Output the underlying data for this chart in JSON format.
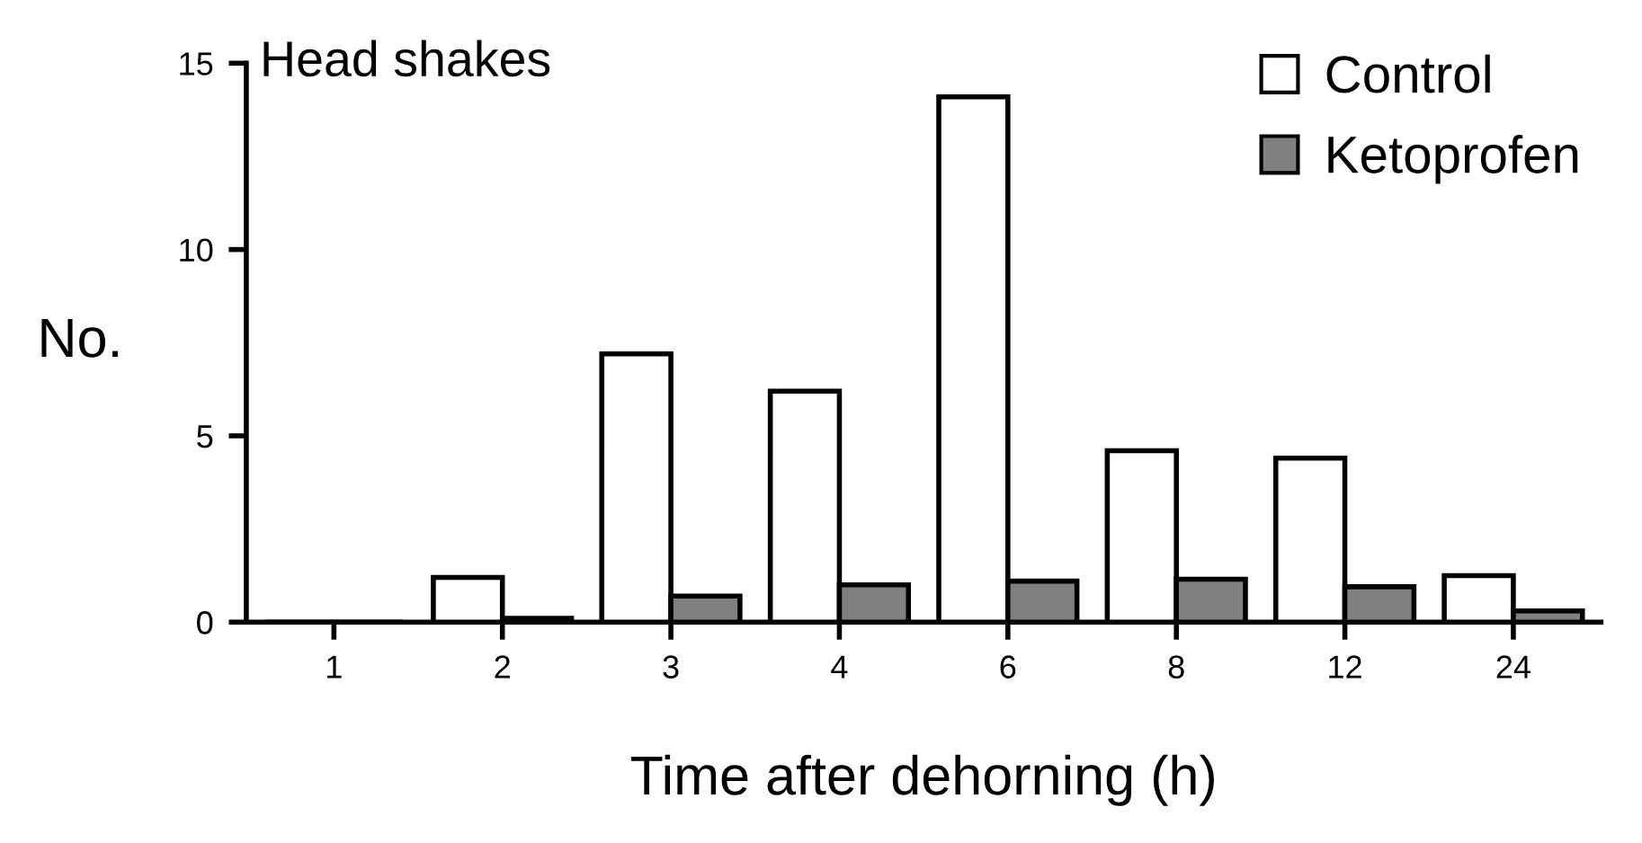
{
  "chart_data": {
    "type": "bar",
    "xlabel": "Time after dehorning (h)",
    "ylabel": "No.",
    "annotations": [
      "Head shakes"
    ],
    "categories": [
      "1",
      "2",
      "3",
      "4",
      "6",
      "8",
      "12",
      "24"
    ],
    "series": [
      {
        "name": "Control",
        "color": "#ffffff",
        "values": [
          0,
          1.2,
          7.2,
          6.2,
          14.1,
          4.6,
          4.4,
          1.25
        ]
      },
      {
        "name": "Ketoprofen",
        "color": "#808080",
        "values": [
          0,
          0.1,
          0.7,
          1.0,
          1.1,
          1.15,
          0.95,
          0.3
        ]
      }
    ],
    "ylim": [
      0,
      15
    ],
    "yticks": [
      0,
      5,
      10,
      15
    ],
    "grid": false,
    "legend": "top right"
  }
}
